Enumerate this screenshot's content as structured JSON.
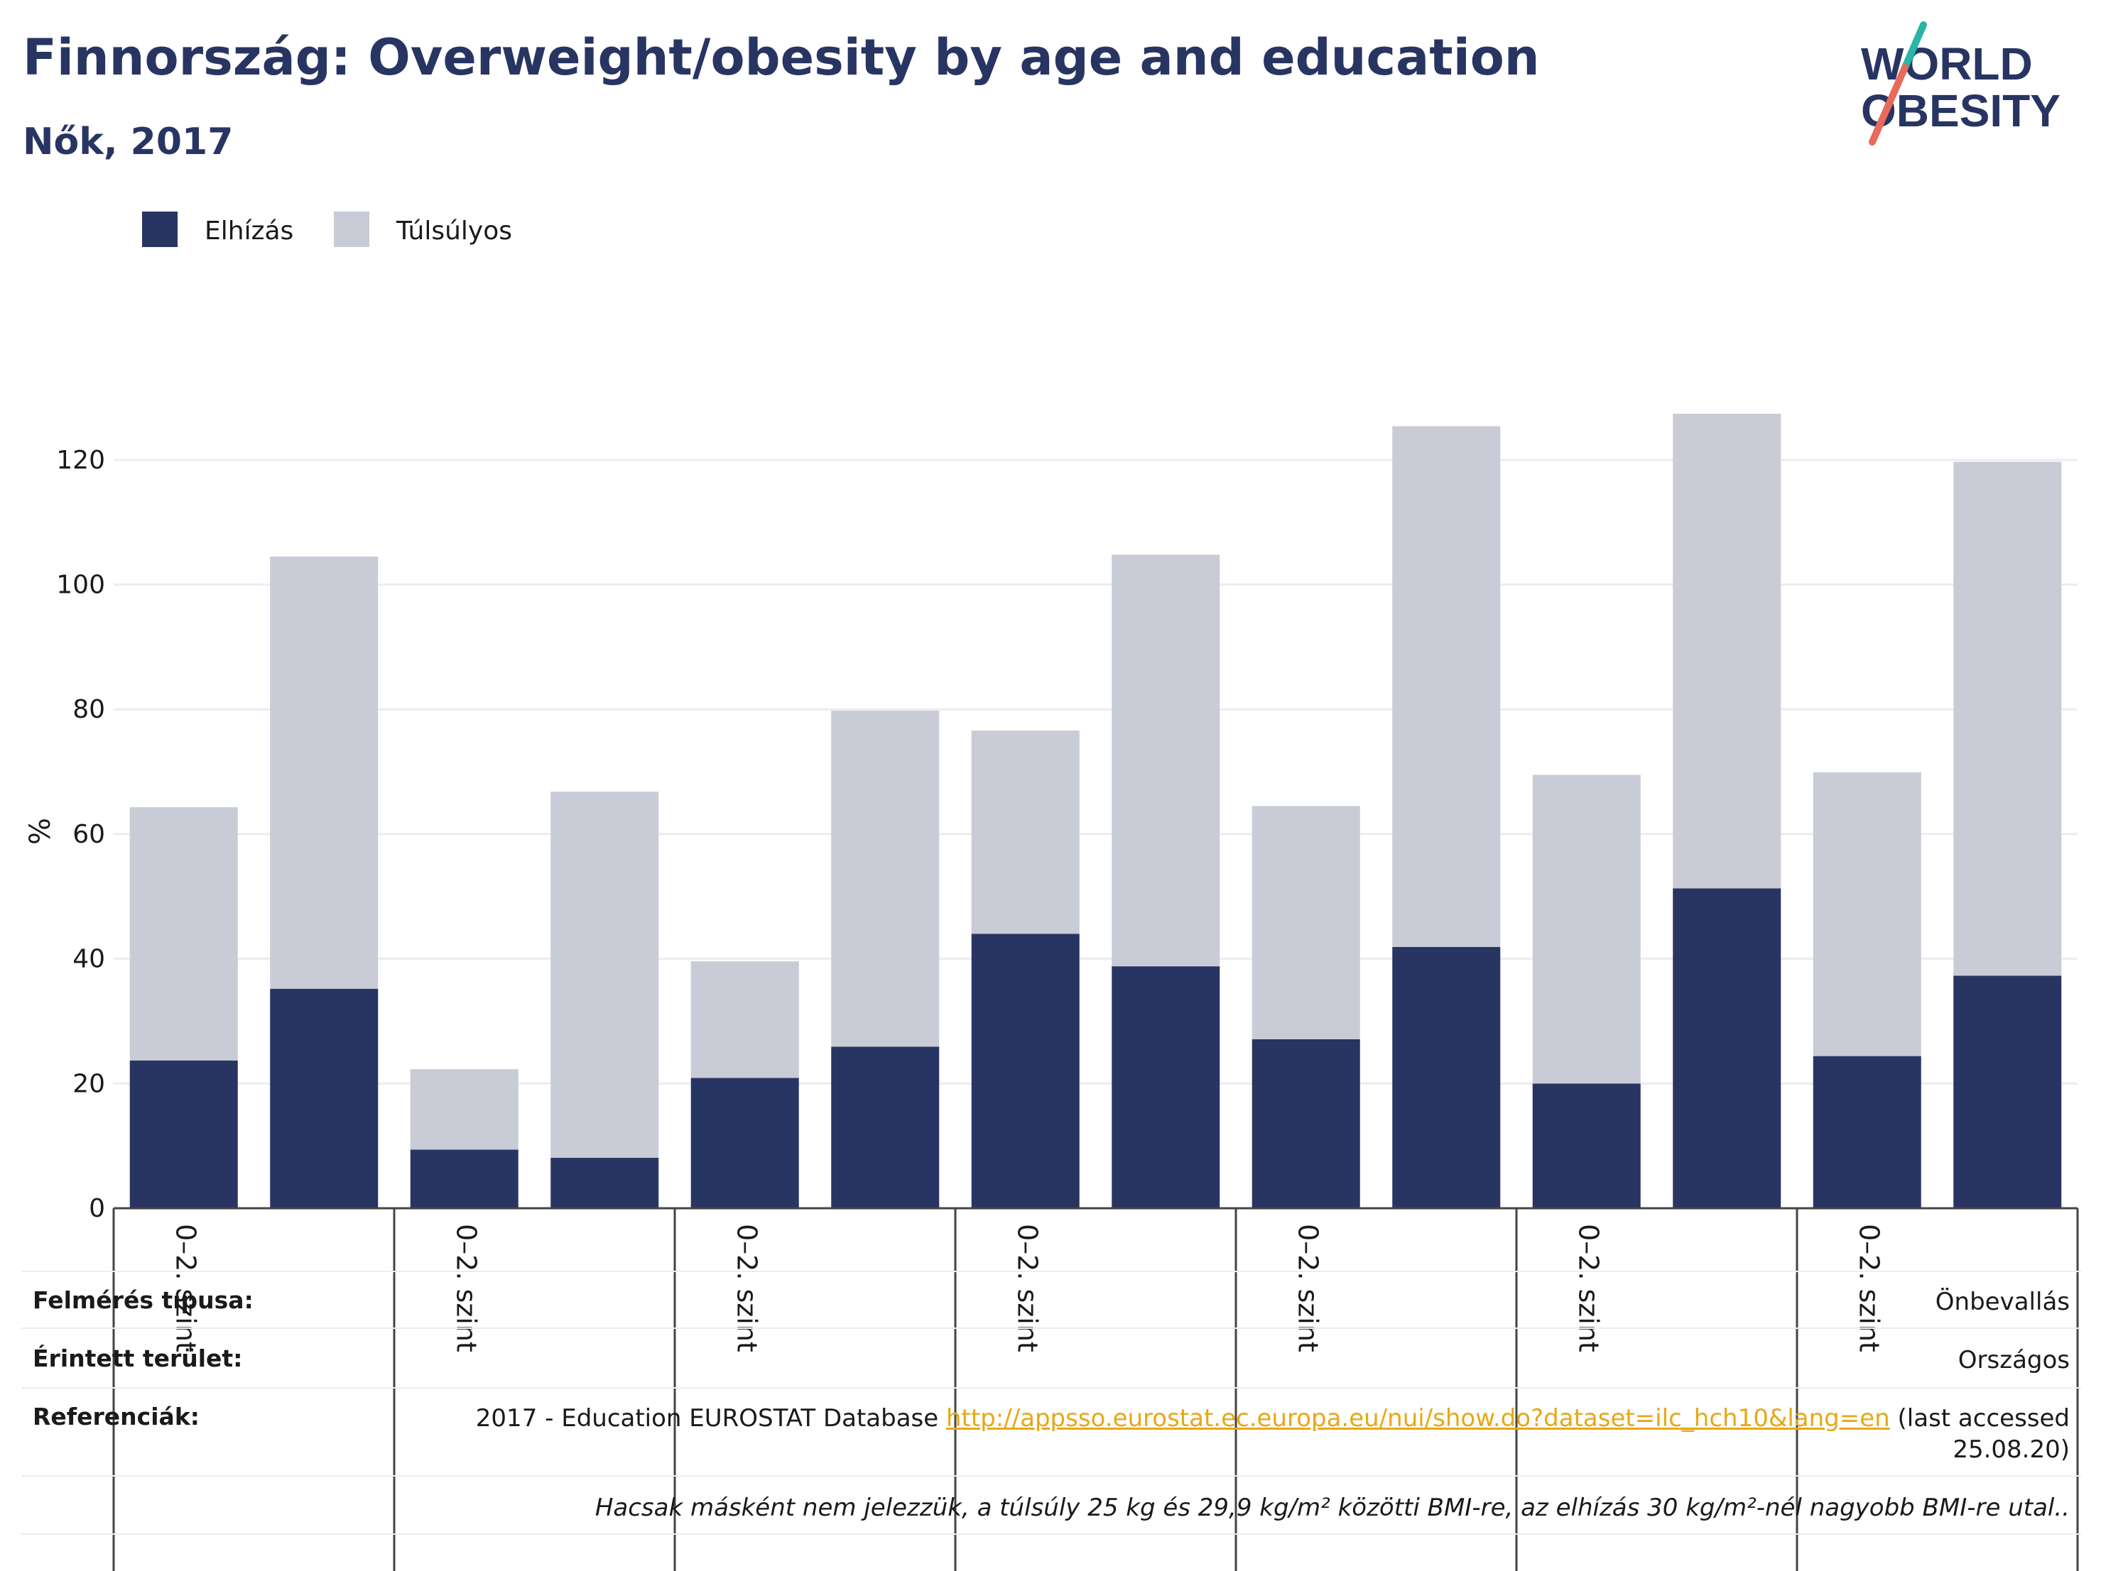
{
  "header": {
    "title": "Finnország: Overweight/obesity by age and education",
    "subtitle": "Nők, 2017",
    "logo_text": [
      "WORLD",
      "OBESITY"
    ]
  },
  "colors": {
    "obesity": "#283562",
    "overweight": "#c9cbd6",
    "title": "#283562",
    "link": "#e6a817",
    "logo_teal": "#2bb5a9",
    "logo_coral": "#e86a5a"
  },
  "chart_data": {
    "type": "bar",
    "stacked": true,
    "ylabel": "%",
    "ylim": [
      0,
      130
    ],
    "yticks": [
      0,
      20,
      40,
      60,
      80,
      100,
      120
    ],
    "grid": true,
    "legend_position": "top-left",
    "group_labels": [
      "0–2. szint",
      "0–2. szint",
      "0–2. szint",
      "0–2. szint",
      "0–2. szint",
      "0–2. szint",
      "0–2. szint"
    ],
    "series": [
      {
        "name": "Elhízás",
        "color": "#283562",
        "values": [
          23.7,
          35.2,
          9.4,
          8.1,
          20.9,
          25.9,
          44.0,
          38.8,
          27.1,
          41.9,
          20.0,
          51.3,
          24.4,
          37.3
        ]
      },
      {
        "name": "Túlsúlyos",
        "color": "#c9cbd6",
        "values": [
          40.6,
          69.3,
          12.9,
          58.7,
          18.7,
          53.9,
          32.6,
          66.0,
          37.4,
          83.5,
          49.5,
          76.1,
          45.5,
          82.4
        ]
      }
    ]
  },
  "footer": {
    "rows": [
      {
        "label": "Felmérés típusa:",
        "value": "Önbevallás"
      },
      {
        "label": "Érintett terület:",
        "value": "Országos"
      },
      {
        "label": "Referenciák:",
        "value_prefix": "2017 - Education EUROSTAT Database ",
        "link": "http://appsso.eurostat.ec.europa.eu/nui/show.do?dataset=ilc_hch10&lang=en",
        "value_suffix": " (last accessed",
        "value_line2": "25.08.20)"
      }
    ],
    "note": "Hacsak másként nem jelezzük, a túlsúly 25 kg és 29,9 kg/m² közötti BMI-re, az elhízás 30 kg/m²-nél nagyobb BMI-re utal.."
  }
}
